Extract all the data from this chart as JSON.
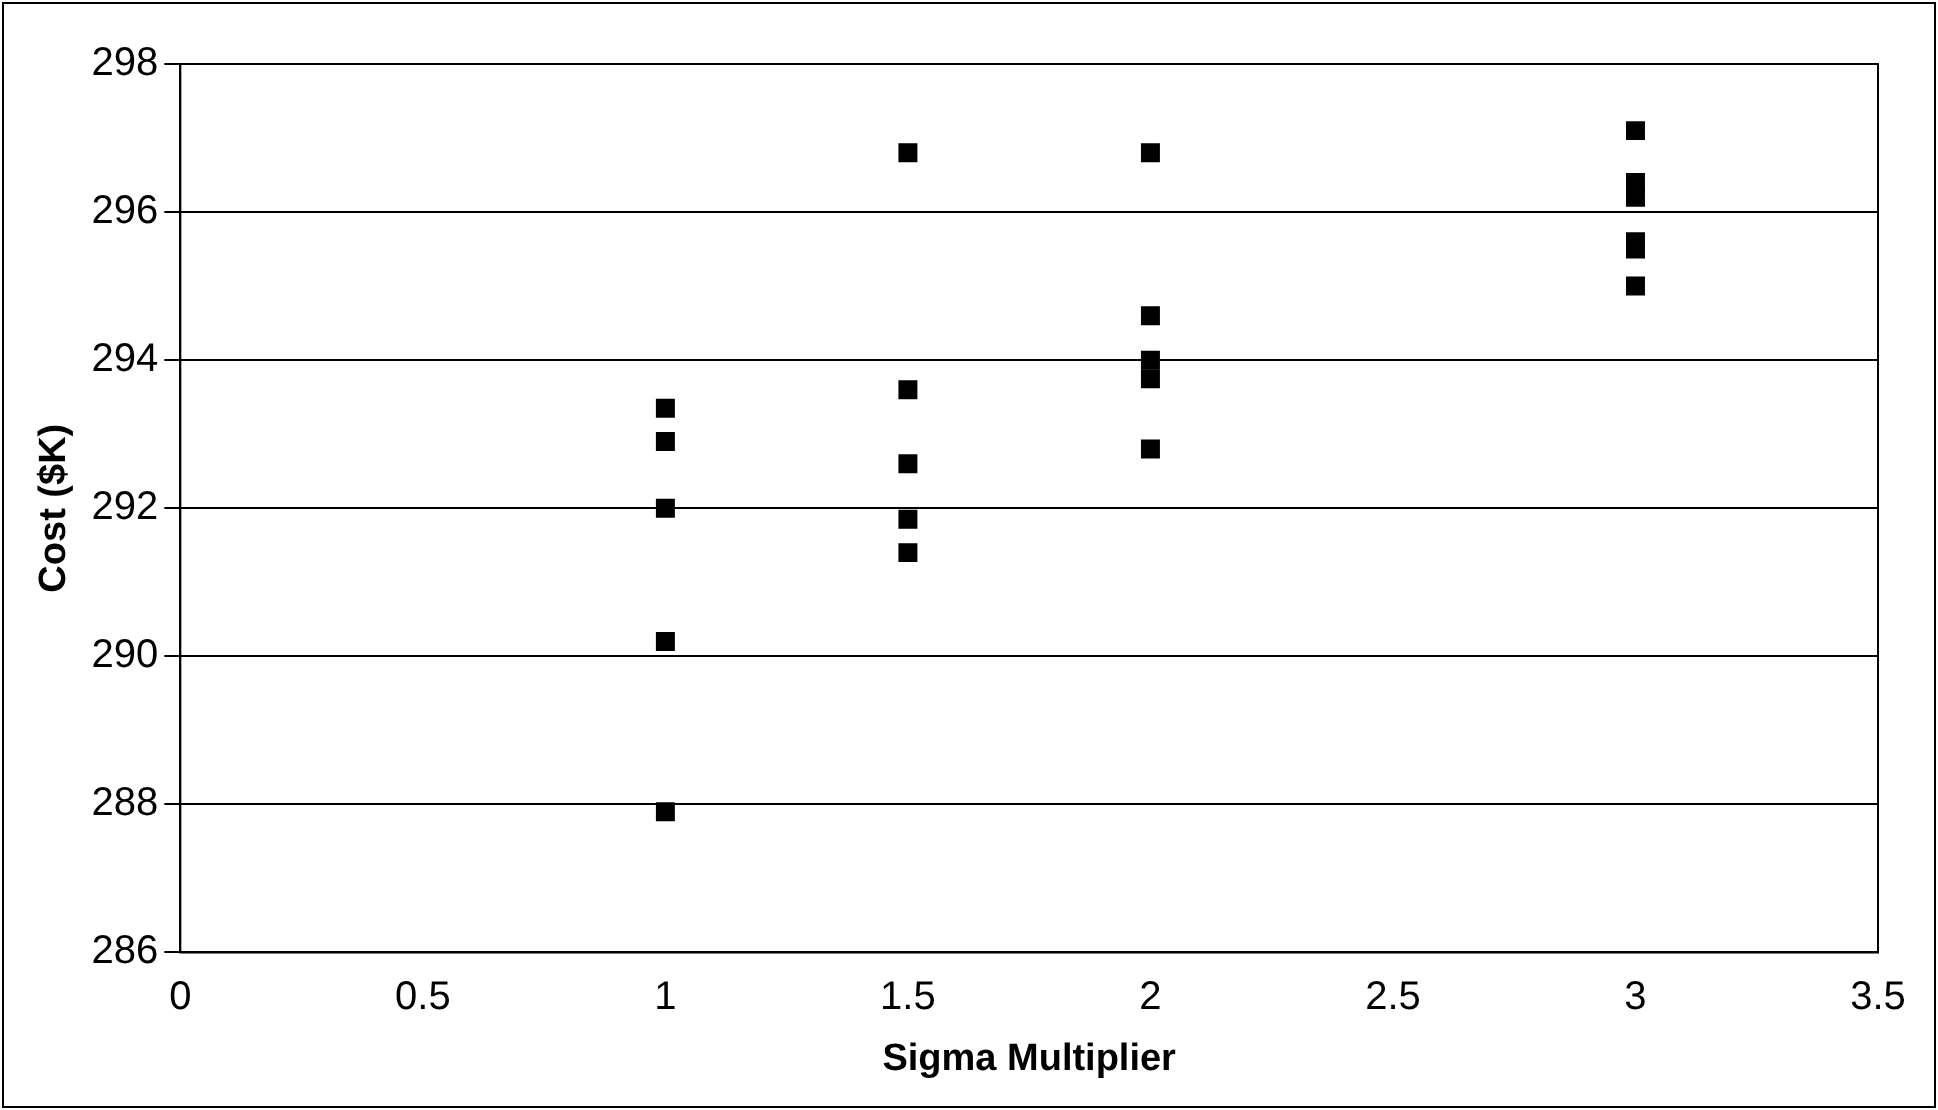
{
  "chart_data": {
    "type": "scatter",
    "xlabel": "Sigma Multiplier",
    "ylabel": "Cost ($K)",
    "x": [
      1,
      1,
      1,
      1,
      1,
      1.5,
      1.5,
      1.5,
      1.5,
      1.5,
      2,
      2,
      2,
      2,
      2,
      3,
      3,
      3,
      3,
      3,
      3
    ],
    "series": [
      {
        "color": "#000000",
        "values": [
          293.35,
          292.9,
          292.0,
          290.2,
          287.9,
          296.8,
          293.6,
          292.6,
          291.85,
          291.4,
          296.8,
          294.6,
          294.0,
          293.75,
          292.8,
          297.1,
          296.4,
          296.2,
          295.6,
          295.5,
          295.0
        ]
      }
    ],
    "xlim": [
      0,
      3.5
    ],
    "xticks": [
      0,
      0.5,
      1,
      1.5,
      2,
      2.5,
      3,
      3.5
    ],
    "ylim": [
      286,
      298
    ],
    "yticks": [
      286,
      288,
      290,
      292,
      294,
      296,
      298
    ],
    "grid": "y",
    "legend": false,
    "marker": "square"
  }
}
